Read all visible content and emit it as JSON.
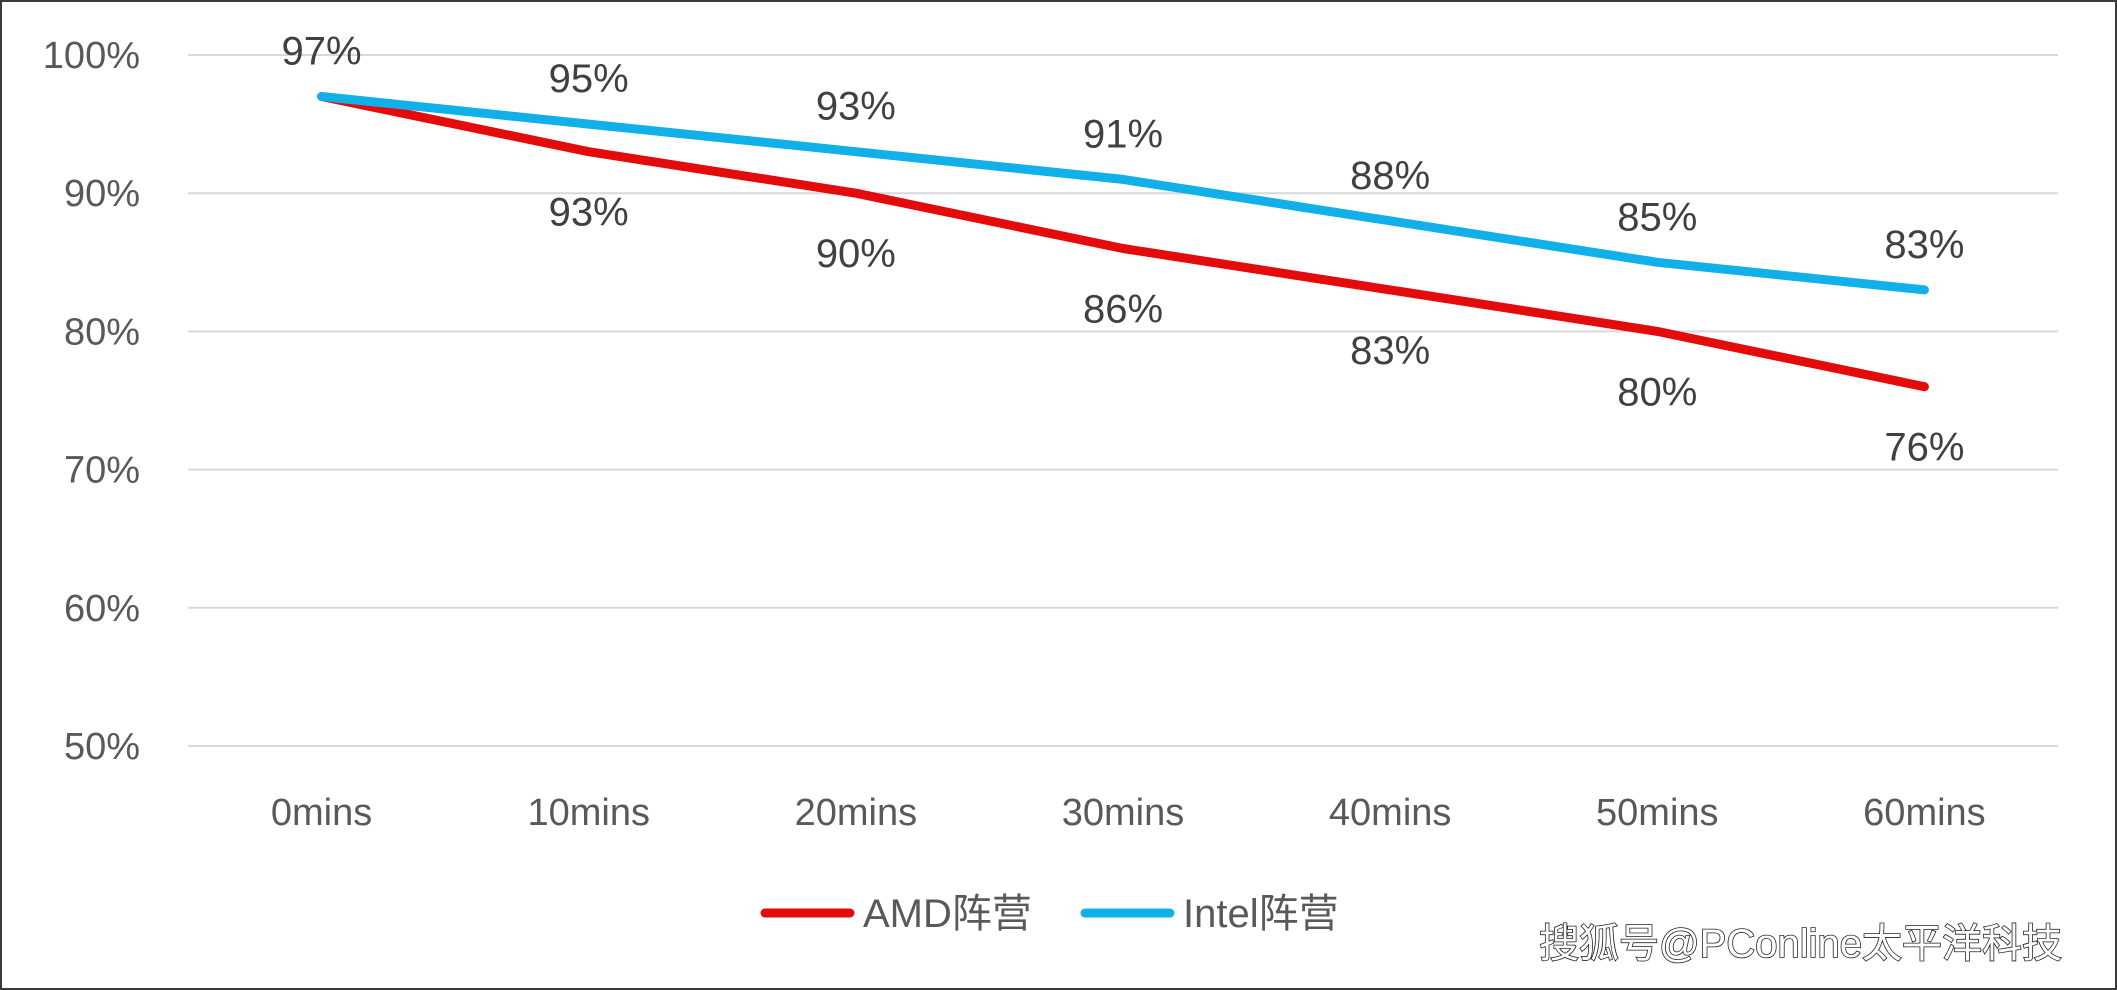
{
  "chart_data": {
    "type": "line",
    "categories": [
      "0mins",
      "10mins",
      "20mins",
      "30mins",
      "40mins",
      "50mins",
      "60mins"
    ],
    "series": [
      {
        "name": "AMD阵营",
        "color": "#e30b0b",
        "values": [
          97,
          93,
          90,
          86,
          83,
          80,
          76
        ],
        "labels": [
          "",
          "93%",
          "90%",
          "86%",
          "83%",
          "80%",
          "76%"
        ]
      },
      {
        "name": "Intel阵营",
        "color": "#11b0e8",
        "values": [
          97,
          95,
          93,
          91,
          88,
          85,
          83
        ],
        "labels": [
          "97%",
          "95%",
          "93%",
          "91%",
          "88%",
          "85%",
          "83%"
        ]
      }
    ],
    "yticks": [
      "50%",
      "60%",
      "70%",
      "80%",
      "90%",
      "100%"
    ],
    "ylim": [
      50,
      100
    ],
    "grid": true,
    "legend": "bottom-center"
  },
  "watermark": "搜狐号@PConline太平洋科技"
}
